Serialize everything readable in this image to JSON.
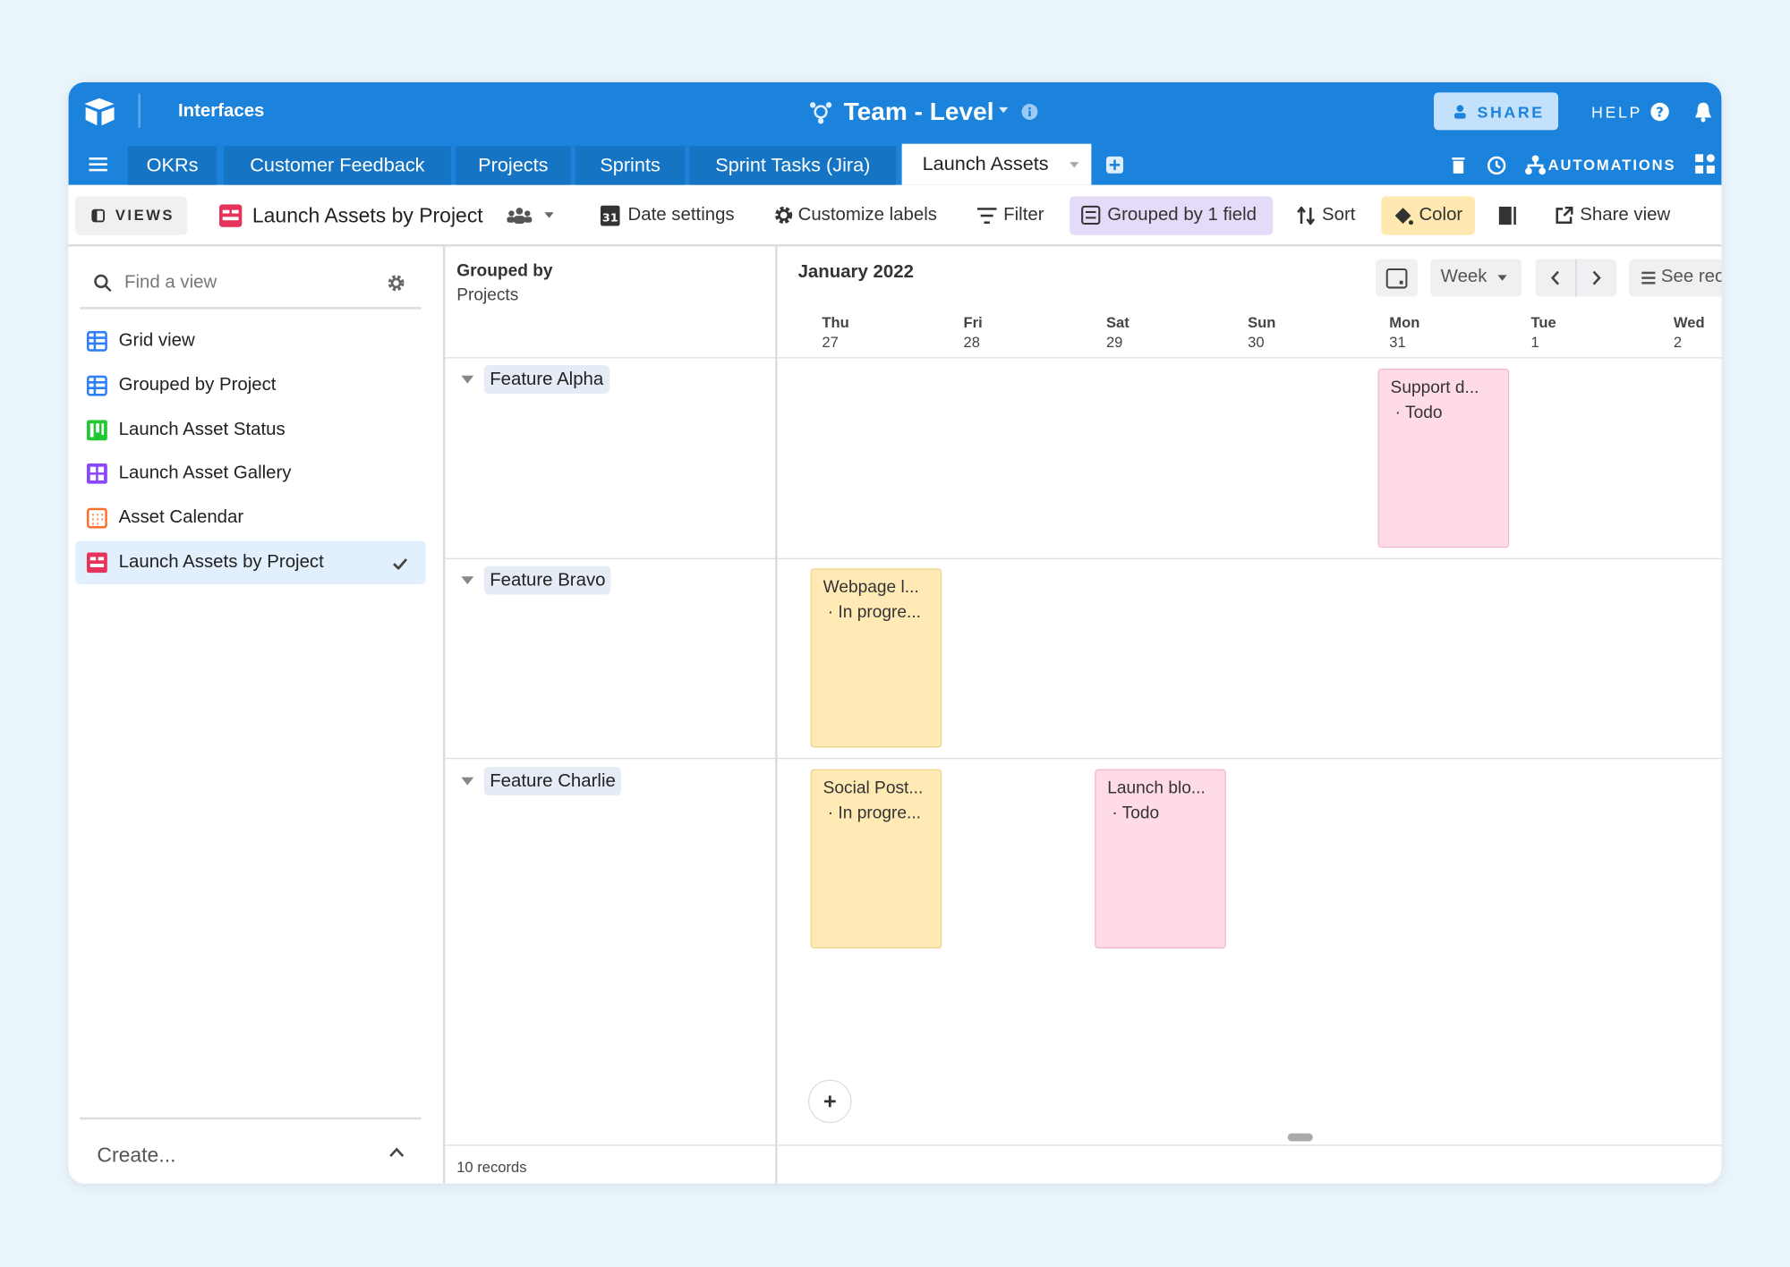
{
  "header": {
    "app": "Interfaces",
    "base": "Team - Level",
    "share": "SHARE",
    "help": "HELP",
    "automations": "AUTOMATIONS"
  },
  "tabs": [
    "OKRs",
    "Customer Feedback",
    "Projects",
    "Sprints",
    "Sprint Tasks (Jira)",
    "Launch Assets"
  ],
  "toolbar": {
    "views": "VIEWS",
    "current_view": "Launch Assets by Project",
    "date_settings": "Date settings",
    "customize_labels": "Customize labels",
    "filter": "Filter",
    "grouped": "Grouped by 1 field",
    "sort": "Sort",
    "color": "Color",
    "share_view": "Share view"
  },
  "sidebar": {
    "search": "Find a view",
    "views": [
      "Grid view",
      "Grouped by Project",
      "Launch Asset Status",
      "Launch Asset Gallery",
      "Asset Calendar",
      "Launch Assets by Project"
    ],
    "create": "Create..."
  },
  "calendar": {
    "grouped_by": "Grouped by",
    "group_field": "Projects",
    "month": "January 2022",
    "period": "Week",
    "see_records": "See records",
    "days": [
      {
        "name": "Thu",
        "date": 27
      },
      {
        "name": "Fri",
        "date": 28
      },
      {
        "name": "Sat",
        "date": 29
      },
      {
        "name": "Sun",
        "date": 30
      },
      {
        "name": "Mon",
        "date": 31
      },
      {
        "name": "Tue",
        "date": 1
      },
      {
        "name": "Wed",
        "date": 2
      }
    ],
    "groups": [
      {
        "name": "Feature Alpha",
        "cards": [
          {
            "title": "Support d...",
            "status": "· Todo"
          }
        ]
      },
      {
        "name": "Feature Bravo",
        "cards": [
          {
            "title": "Webpage l...",
            "status": "· In progre..."
          }
        ]
      },
      {
        "name": "Feature Charlie",
        "cards": [
          {
            "title": "Social Post...",
            "status": "· In progre..."
          },
          {
            "title": "Launch blo...",
            "status": "· Todo"
          }
        ]
      }
    ],
    "footer": "10 records"
  }
}
